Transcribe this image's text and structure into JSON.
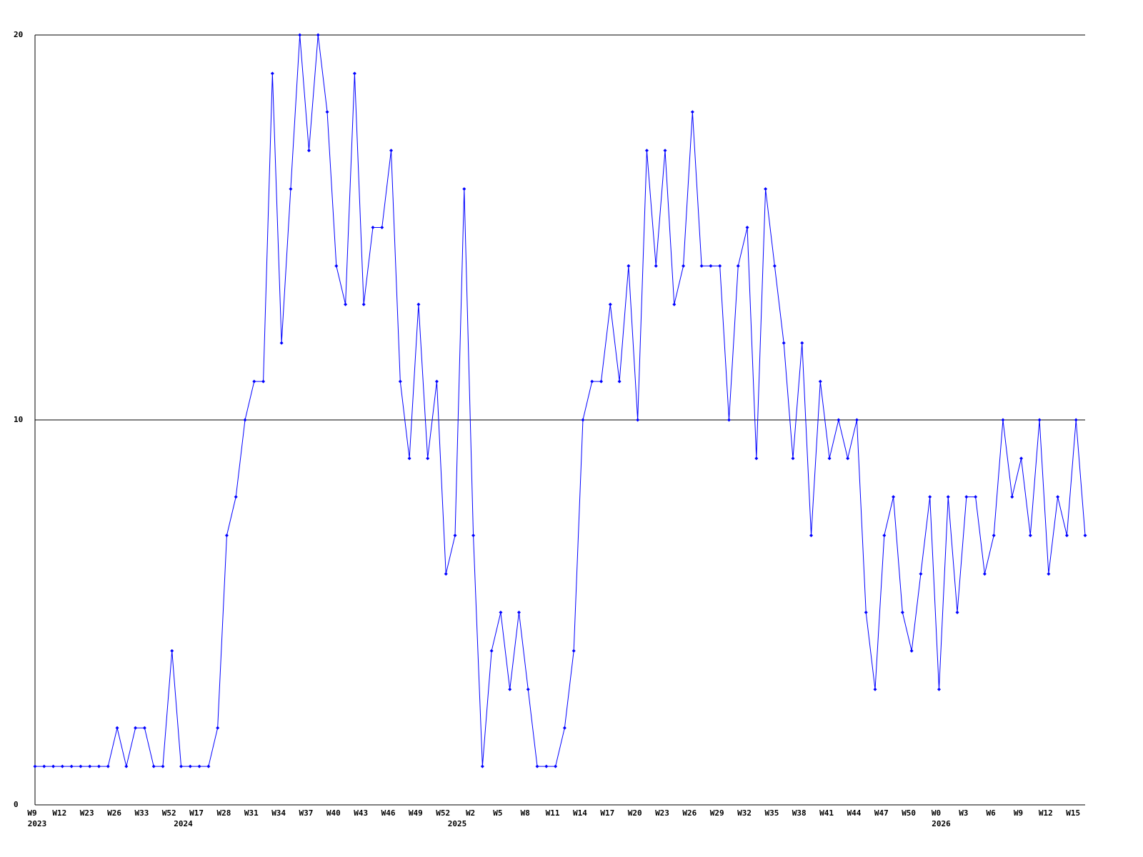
{
  "chart_data": {
    "type": "line",
    "categories": [
      "W9",
      null,
      null,
      "W12",
      null,
      null,
      "W23",
      null,
      null,
      "W26",
      null,
      null,
      "W33",
      null,
      null,
      "W52",
      null,
      null,
      "W17",
      null,
      null,
      "W28",
      null,
      null,
      "W31",
      null,
      null,
      "W34",
      null,
      null,
      "W37",
      null,
      null,
      "W40",
      null,
      null,
      "W43",
      null,
      null,
      "W46",
      null,
      null,
      "W49",
      null,
      null,
      "W52",
      null,
      null,
      "W2",
      null,
      null,
      "W5",
      null,
      null,
      "W8",
      null,
      null,
      "W11",
      null,
      null,
      "W14",
      null,
      null,
      "W17",
      null,
      null,
      "W20",
      null,
      null,
      "W23",
      null,
      null,
      "W26",
      null,
      null,
      "W29",
      null,
      null,
      "W32",
      null,
      null,
      "W35",
      null,
      null,
      "W38",
      null,
      null,
      "W41",
      null,
      null,
      "W44",
      null,
      null,
      "W47",
      null,
      null,
      "W50",
      null,
      null,
      "W0",
      null,
      null,
      "W3",
      null,
      null,
      "W6",
      null,
      null,
      "W9",
      null,
      null,
      "W12",
      null,
      null,
      "W15",
      null
    ],
    "year_labels": [
      "2023",
      null,
      null,
      null,
      null,
      null,
      null,
      null,
      null,
      null,
      null,
      null,
      null,
      null,
      null,
      null,
      "2024",
      null,
      null,
      null,
      null,
      null,
      null,
      null,
      null,
      null,
      null,
      null,
      null,
      null,
      null,
      null,
      null,
      null,
      null,
      null,
      null,
      null,
      null,
      null,
      null,
      null,
      null,
      null,
      null,
      null,
      "2025",
      null,
      null,
      null,
      null,
      null,
      null,
      null,
      null,
      null,
      null,
      null,
      null,
      null,
      null,
      null,
      null,
      null,
      null,
      null,
      null,
      null,
      null,
      null,
      null,
      null,
      null,
      null,
      null,
      null,
      null,
      null,
      null,
      null,
      null,
      null,
      null,
      null,
      null,
      null,
      null,
      null,
      null,
      null,
      null,
      null,
      null,
      null,
      null,
      null,
      null,
      null,
      null,
      "2026",
      null,
      null,
      null,
      null,
      null,
      null,
      null,
      null,
      null,
      null,
      null,
      null,
      null,
      null,
      null,
      null
    ],
    "series": [
      {
        "color": "#0000ff",
        "values": [
          1,
          1,
          1,
          1,
          1,
          1,
          1,
          1,
          1,
          2,
          1,
          2,
          2,
          1,
          1,
          4,
          1,
          1,
          1,
          1,
          2,
          7,
          8,
          10,
          11,
          11,
          19,
          12,
          16,
          20,
          17,
          20,
          18,
          14,
          13,
          19,
          13,
          15,
          15,
          17,
          11,
          9,
          13,
          9,
          11,
          6,
          7,
          16,
          7,
          1,
          4,
          5,
          3,
          5,
          3,
          1,
          1,
          1,
          2,
          4,
          10,
          11,
          11,
          13,
          11,
          14,
          10,
          17,
          14,
          17,
          13,
          14,
          18,
          14,
          14,
          14,
          10,
          14,
          15,
          9,
          16,
          14,
          12,
          9,
          12,
          7,
          11,
          9,
          10,
          9,
          10,
          5,
          3,
          7,
          8,
          5,
          4,
          6,
          8,
          3,
          8,
          5,
          8,
          8,
          6,
          7,
          10,
          8,
          9,
          7,
          10,
          6,
          8,
          7,
          10,
          7
        ]
      }
    ],
    "ylim": [
      0,
      20
    ],
    "yticks": [
      0,
      10,
      20
    ],
    "grid": true
  }
}
